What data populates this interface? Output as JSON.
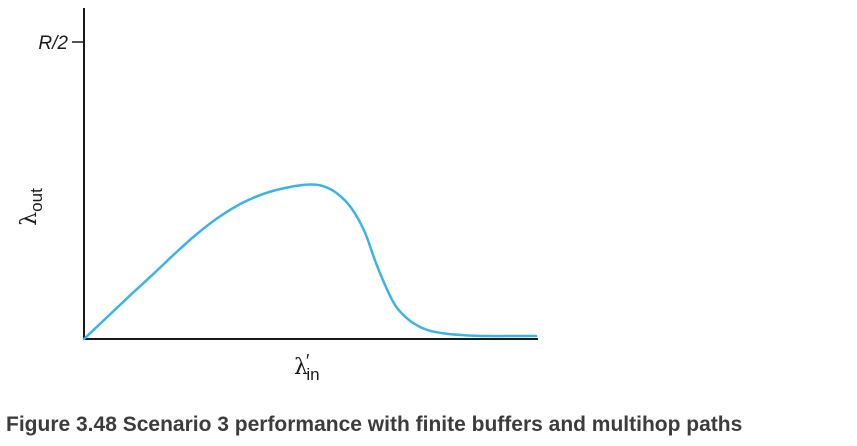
{
  "figure": {
    "caption": "Figure 3.48 Scenario 3 performance with finite buffers and multihop paths"
  },
  "chart_data": {
    "type": "line",
    "title": "",
    "xlabel": {
      "symbol": "λ",
      "prime": "′",
      "subscript": "in"
    },
    "ylabel": {
      "symbol": "λ",
      "subscript": "out"
    },
    "yticks": [
      {
        "value": 0.5,
        "label": "R/2"
      }
    ],
    "xlim": [
      0,
      1
    ],
    "ylim": [
      0,
      0.5
    ],
    "grid": false,
    "series": [
      {
        "color": "#3db3e3",
        "x": [
          0,
          0.05,
          0.1,
          0.15,
          0.2,
          0.25,
          0.3,
          0.35,
          0.4,
          0.45,
          0.5,
          0.53,
          0.56,
          0.59,
          0.62,
          0.645,
          0.67,
          0.69,
          0.71,
          0.73,
          0.76,
          0.8,
          0.85,
          0.9,
          0.95,
          1.0
        ],
        "y": [
          0.0,
          0.036,
          0.072,
          0.107,
          0.143,
          0.177,
          0.206,
          0.229,
          0.245,
          0.255,
          0.26,
          0.257,
          0.245,
          0.222,
          0.182,
          0.13,
          0.084,
          0.055,
          0.038,
          0.026,
          0.015,
          0.009,
          0.006,
          0.005,
          0.005,
          0.005
        ]
      }
    ]
  }
}
